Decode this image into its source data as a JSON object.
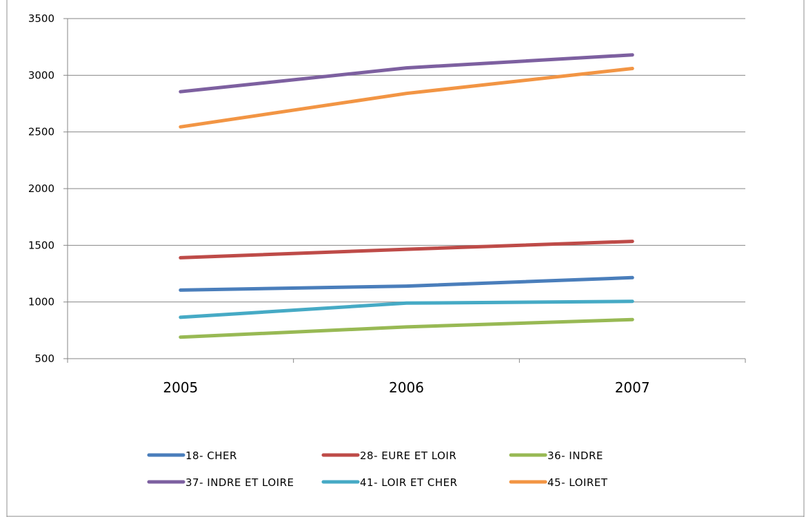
{
  "chart_data": {
    "type": "line",
    "title": "",
    "xlabel": "",
    "ylabel": "",
    "categories": [
      "2005",
      "2006",
      "2007"
    ],
    "ylim": [
      500,
      3500
    ],
    "yticks": [
      "500",
      "1000",
      "1500",
      "2000",
      "2500",
      "3000",
      "3500"
    ],
    "grid": true,
    "legend_position": "bottom",
    "series": [
      {
        "name": "18- CHER",
        "color": "#4a7ebb",
        "values": [
          1105,
          1140,
          1215
        ]
      },
      {
        "name": "28- EURE ET LOIR",
        "color": "#be4b48",
        "values": [
          1390,
          1465,
          1535
        ]
      },
      {
        "name": "36- INDRE",
        "color": "#98b954",
        "values": [
          690,
          780,
          845
        ]
      },
      {
        "name": "37- INDRE ET LOIRE",
        "color": "#7d60a0",
        "values": [
          2855,
          3065,
          3180
        ]
      },
      {
        "name": "41- LOIR ET CHER",
        "color": "#46aac5",
        "values": [
          865,
          990,
          1005
        ]
      },
      {
        "name": "45- LOIRET",
        "color": "#f29544",
        "values": [
          2545,
          2840,
          3060
        ]
      }
    ]
  }
}
